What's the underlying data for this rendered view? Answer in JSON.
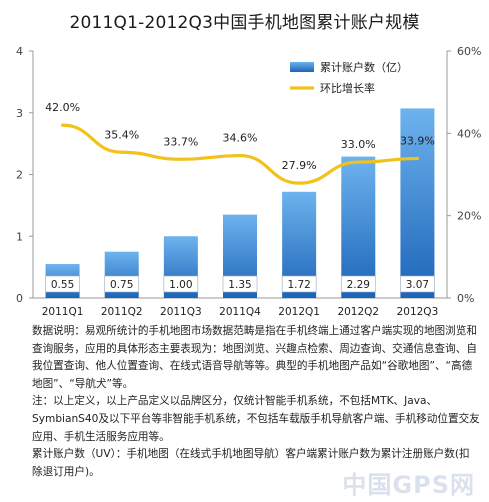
{
  "chart_data": {
    "type": "bar+line",
    "title": "2011Q1-2012Q3中国手机地图累计账户规模",
    "categories": [
      "2011Q1",
      "2011Q2",
      "2011Q3",
      "2011Q4",
      "2012Q1",
      "2012Q2",
      "2012Q3"
    ],
    "series": [
      {
        "name": "累计账户数（亿）",
        "type": "bar",
        "axis": "left",
        "values": [
          0.55,
          0.75,
          1.0,
          1.35,
          1.72,
          2.29,
          3.07
        ],
        "labels": [
          "0.55",
          "0.75",
          "1.00",
          "1.35",
          "1.72",
          "2.29",
          "3.07"
        ]
      },
      {
        "name": "环比增长率",
        "type": "line",
        "axis": "right",
        "values": [
          42.0,
          35.4,
          33.7,
          34.6,
          27.9,
          33.0,
          33.9
        ],
        "labels": [
          "42.0%",
          "35.4%",
          "33.7%",
          "34.6%",
          "27.9%",
          "33.0%",
          "33.9%"
        ]
      }
    ],
    "y_left": {
      "ylim": [
        0,
        4
      ],
      "ticks": [
        "0",
        "1",
        "2",
        "3",
        "4"
      ]
    },
    "y_right": {
      "ylim": [
        0,
        60
      ],
      "ticks": [
        "0%",
        "20%",
        "40%",
        "60%"
      ]
    },
    "legend": "top-right",
    "colors": {
      "bar": "#1f6fc4",
      "bar_light": "#5aa6e6",
      "line": "#f2c21a"
    }
  },
  "notes": [
    "数据说明：易观所统计的手机地图市场数据范畴是指在手机终端上通过客户端实现的地图浏览和查询服务，应用的具体形态主要表现为：地图浏览、兴趣点检索、周边查询、交通信息查询、自我位置查询、他人位置查询、在线式语音导航等等。典型的手机地图产品如“谷歌地图”、“高德地图”、“导航犬”等。",
    "注：以上定义，以上产品定义以品牌区分，仅统计智能手机系统，不包括MTK、Java、SymbianS40及以下平台等非智能手机系统，不包括车载版手机导航客户端、手机移动位置交友应用、手机生活服务应用等。",
    "累计账户数（UV）：手机地图（在线式手机地图导航）客户端累计账户数为累计注册账户数(扣除退订用户)。"
  ],
  "watermark": "中国GPS网"
}
